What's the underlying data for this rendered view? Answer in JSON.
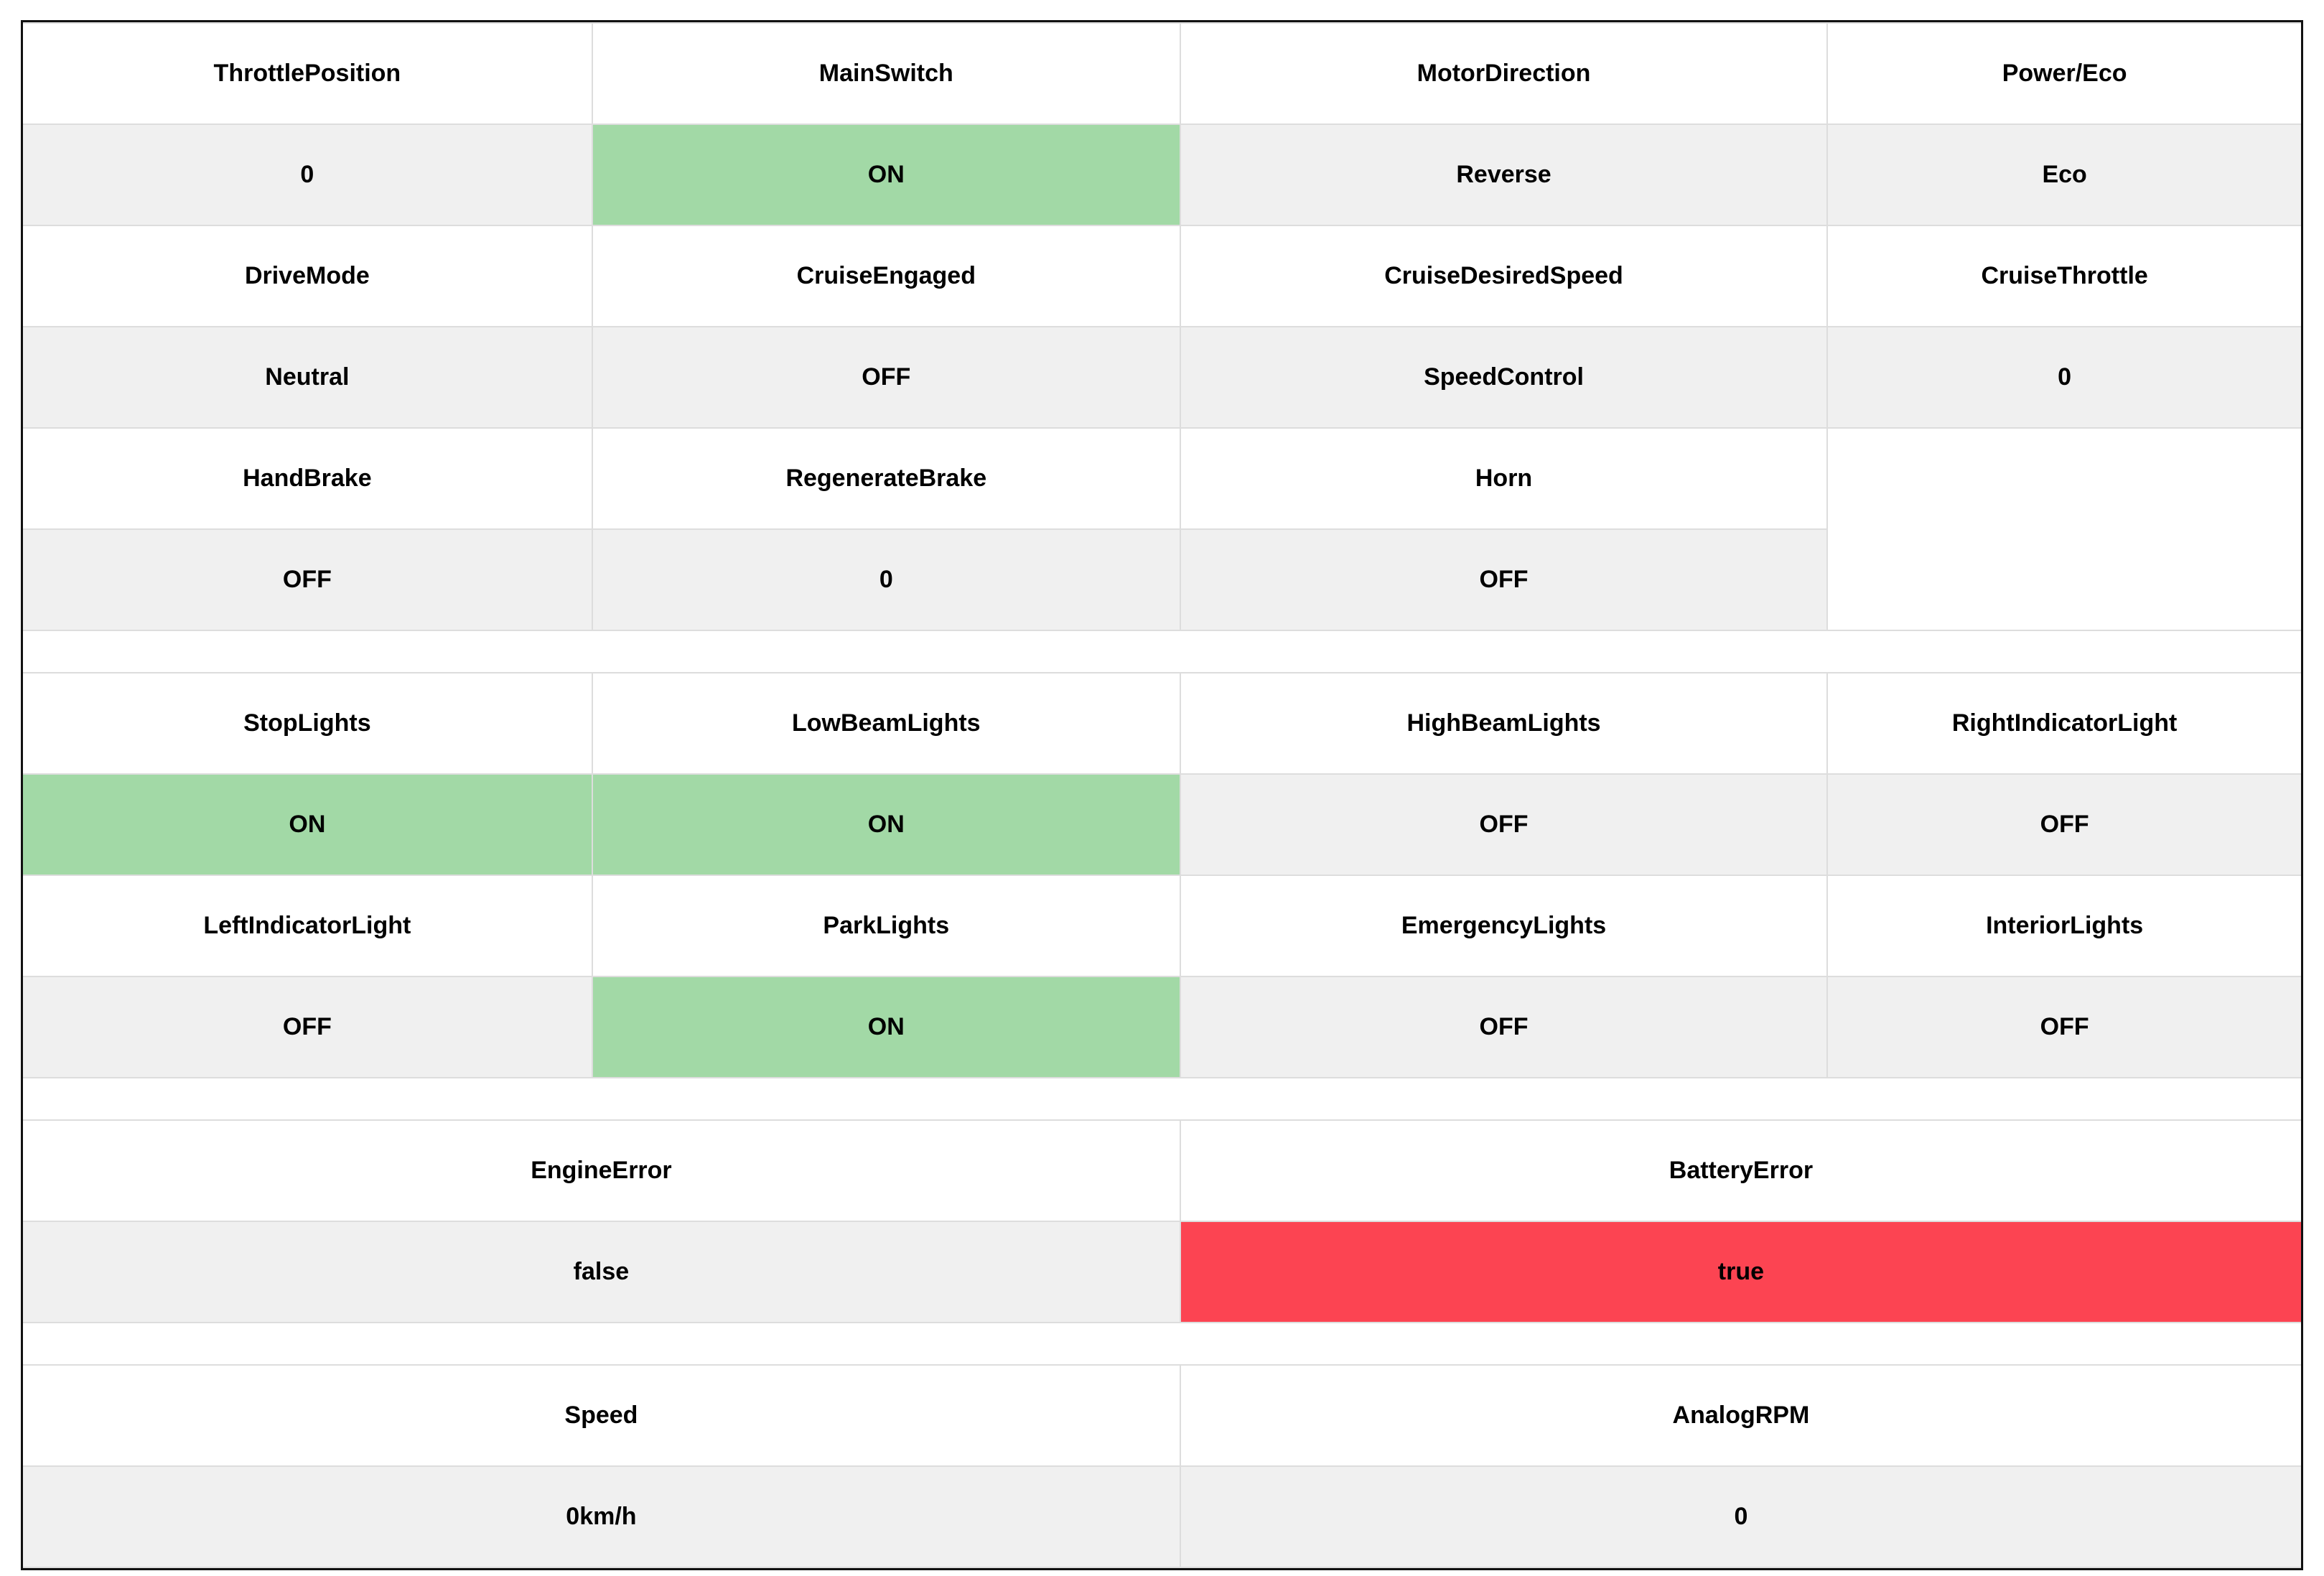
{
  "colors": {
    "on_green": "#a2d9a6",
    "error_red": "#fc4452",
    "value_gray": "#f0f0f0",
    "grid_line": "#dddddd",
    "frame_border": "#111111",
    "text": "#000000",
    "background": "#ffffff"
  },
  "sections": [
    {
      "name": "drive-status",
      "rows": [
        {
          "kind": "header",
          "cells": [
            {
              "text": "ThrottlePosition"
            },
            {
              "text": "MainSwitch"
            },
            {
              "text": "MotorDirection"
            },
            {
              "text": "Power/Eco"
            }
          ]
        },
        {
          "kind": "value",
          "cells": [
            {
              "text": "0",
              "state": "neutral"
            },
            {
              "text": "ON",
              "state": "on"
            },
            {
              "text": "Reverse",
              "state": "neutral"
            },
            {
              "text": "Eco",
              "state": "neutral"
            }
          ]
        },
        {
          "kind": "header",
          "cells": [
            {
              "text": "DriveMode"
            },
            {
              "text": "CruiseEngaged"
            },
            {
              "text": "CruiseDesiredSpeed"
            },
            {
              "text": "CruiseThrottle"
            }
          ]
        },
        {
          "kind": "value",
          "cells": [
            {
              "text": "Neutral",
              "state": "neutral"
            },
            {
              "text": "OFF",
              "state": "off"
            },
            {
              "text": "SpeedControl",
              "state": "neutral"
            },
            {
              "text": "0",
              "state": "neutral"
            }
          ]
        },
        {
          "kind": "header",
          "cells": [
            {
              "text": "HandBrake"
            },
            {
              "text": "RegenerateBrake"
            },
            {
              "text": "Horn"
            },
            {
              "text": ""
            }
          ]
        },
        {
          "kind": "value",
          "cells": [
            {
              "text": "OFF",
              "state": "off"
            },
            {
              "text": "0",
              "state": "neutral"
            },
            {
              "text": "OFF",
              "state": "off"
            }
          ]
        }
      ]
    },
    {
      "name": "lights-status",
      "rows": [
        {
          "kind": "header",
          "cells": [
            {
              "text": "StopLights"
            },
            {
              "text": "LowBeamLights"
            },
            {
              "text": "HighBeamLights"
            },
            {
              "text": "RightIndicatorLight"
            }
          ]
        },
        {
          "kind": "value",
          "cells": [
            {
              "text": "ON",
              "state": "on"
            },
            {
              "text": "ON",
              "state": "on"
            },
            {
              "text": "OFF",
              "state": "off"
            },
            {
              "text": "OFF",
              "state": "off"
            }
          ]
        },
        {
          "kind": "header",
          "cells": [
            {
              "text": "LeftIndicatorLight"
            },
            {
              "text": "ParkLights"
            },
            {
              "text": "EmergencyLights"
            },
            {
              "text": "InteriorLights"
            }
          ]
        },
        {
          "kind": "value",
          "cells": [
            {
              "text": "OFF",
              "state": "off"
            },
            {
              "text": "ON",
              "state": "on"
            },
            {
              "text": "OFF",
              "state": "off"
            },
            {
              "text": "OFF",
              "state": "off"
            }
          ]
        }
      ]
    },
    {
      "name": "errors",
      "rows": [
        {
          "kind": "header",
          "cells": [
            {
              "text": "EngineError"
            },
            {
              "text": "BatteryError"
            }
          ]
        },
        {
          "kind": "value",
          "cells": [
            {
              "text": "false",
              "state": "ok"
            },
            {
              "text": "true",
              "state": "error"
            }
          ]
        }
      ]
    },
    {
      "name": "telemetry",
      "rows": [
        {
          "kind": "header",
          "cells": [
            {
              "text": "Speed"
            },
            {
              "text": "AnalogRPM"
            }
          ]
        },
        {
          "kind": "value",
          "cells": [
            {
              "text": "0km/h",
              "state": "neutral"
            },
            {
              "text": "0",
              "state": "neutral"
            }
          ]
        }
      ]
    }
  ]
}
